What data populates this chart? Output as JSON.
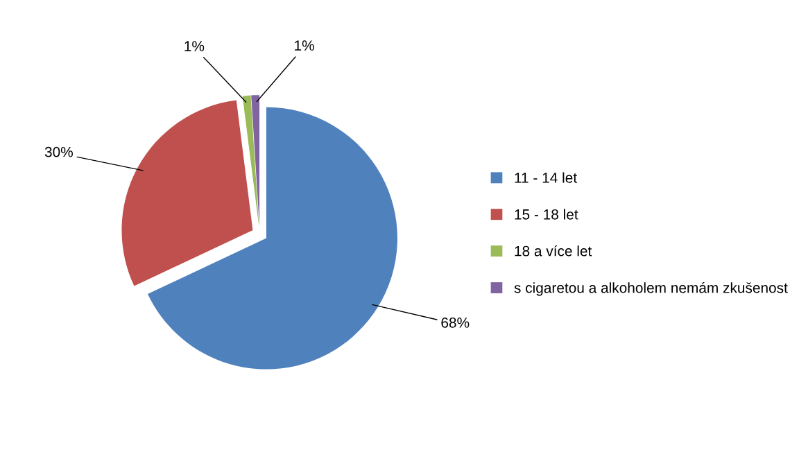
{
  "chart_data": {
    "type": "pie",
    "categories": [
      "11 - 14 let",
      "15 - 18 let",
      "18 a více let",
      "s cigaretou a alkoholem nemám zkušenost"
    ],
    "values": [
      68,
      30,
      1,
      1
    ],
    "colors": [
      "#4f81bd",
      "#c0504d",
      "#9bbb59",
      "#8064a2"
    ],
    "value_labels": [
      "68%",
      "30%",
      "1%",
      "1%"
    ],
    "legend": "right"
  }
}
